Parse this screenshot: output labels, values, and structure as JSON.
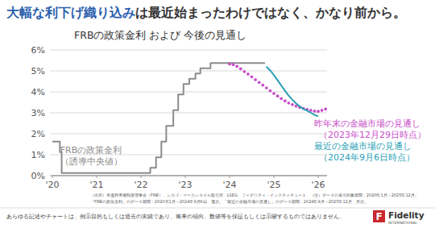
{
  "headline": {
    "emphasis": "大幅な利下げ織り込み",
    "rest": "は最近始まったわけではなく、かなり前から。"
  },
  "chart_data": {
    "type": "line",
    "title": "FRBの政策金利 および 今後の見通し",
    "xlim": [
      2020,
      2026.2
    ],
    "xticks": [
      {
        "value": 2020,
        "label": "'20"
      },
      {
        "value": 2021,
        "label": "'21"
      },
      {
        "value": 2022,
        "label": "'22"
      },
      {
        "value": 2023,
        "label": "'23"
      },
      {
        "value": 2024,
        "label": "'24"
      },
      {
        "value": 2025,
        "label": "'25"
      },
      {
        "value": 2026,
        "label": "'26"
      }
    ],
    "ylim": [
      0,
      6
    ],
    "yticks": [
      {
        "value": 0,
        "label": "0%"
      },
      {
        "value": 1,
        "label": "1%"
      },
      {
        "value": 2,
        "label": "2%"
      },
      {
        "value": 3,
        "label": "3%"
      },
      {
        "value": 4,
        "label": "4%"
      },
      {
        "value": 5,
        "label": "5%"
      },
      {
        "value": 6,
        "label": "6%"
      }
    ],
    "grid": true,
    "series": [
      {
        "name": "FRBの政策金利",
        "color": "#8c8c8c",
        "line_style": "solid",
        "marker": "none",
        "x": [
          2020.0,
          2020.17,
          2020.17,
          2020.21,
          2020.21,
          2022.21,
          2022.21,
          2022.34,
          2022.34,
          2022.46,
          2022.46,
          2022.57,
          2022.57,
          2022.73,
          2022.73,
          2022.84,
          2022.84,
          2022.96,
          2022.96,
          2023.09,
          2023.09,
          2023.23,
          2023.23,
          2023.34,
          2023.34,
          2023.57,
          2023.57,
          2024.8
        ],
        "values": [
          1.625,
          1.625,
          1.125,
          1.125,
          0.125,
          0.125,
          0.375,
          0.375,
          0.875,
          0.875,
          1.625,
          1.625,
          2.375,
          2.375,
          3.125,
          3.125,
          3.875,
          3.875,
          4.375,
          4.375,
          4.625,
          4.625,
          4.875,
          4.875,
          5.125,
          5.125,
          5.375,
          5.375
        ]
      },
      {
        "name": "昨年末の金融市場の見通し",
        "color": "#c94fc9",
        "line_style": "none",
        "marker": "circle",
        "x": [
          2024.0,
          2024.083,
          2024.167,
          2024.25,
          2024.333,
          2024.417,
          2024.5,
          2024.583,
          2024.667,
          2024.75,
          2024.833,
          2024.917,
          2025.0,
          2025.083,
          2025.167,
          2025.25,
          2025.333,
          2025.417,
          2025.5,
          2025.583,
          2025.667,
          2025.75,
          2025.833,
          2025.917,
          2026.0,
          2026.083,
          2026.167
        ],
        "values": [
          5.33,
          5.3,
          5.22,
          5.1,
          4.97,
          4.85,
          4.72,
          4.58,
          4.45,
          4.32,
          4.19,
          4.05,
          3.92,
          3.8,
          3.68,
          3.57,
          3.47,
          3.39,
          3.32,
          3.26,
          3.21,
          3.16,
          3.12,
          3.08,
          3.07,
          3.12,
          3.18
        ]
      },
      {
        "name": "最近の金融市場の見通し",
        "color": "#2a9fb5",
        "line_style": "solid",
        "marker": "none",
        "x": [
          2024.83,
          2024.917,
          2025.0,
          2025.083,
          2025.167,
          2025.25,
          2025.333,
          2025.417,
          2025.5,
          2025.583,
          2025.667,
          2025.75,
          2025.833,
          2025.917,
          2026.0
        ],
        "values": [
          5.2,
          5.02,
          4.8,
          4.55,
          4.3,
          4.05,
          3.82,
          3.62,
          3.45,
          3.3,
          3.18,
          3.1,
          3.0,
          2.9,
          2.83
        ]
      }
    ],
    "annotations": [
      "（誘導中央値）",
      "（2023年12月29日時点）",
      "（2024年9月6日時点）"
    ]
  },
  "source_notes": [
    "（出所）米連邦準備制度理事会（FRB）、シカゴ・マーカンタイル取引所、LSEG、フィデリティ・インスティテュート、（注）データの表示対象期間：2020年1月～2025年12月。",
    "「FRBの政策金利」のデータ期間：2020年1月～2024年9月6日、週次。「最近の金融市場の見通し」のデータ期間：2024年9月～2025年12月、月次。"
  ],
  "disclaimer": "あらゆる記述やチャートは、例示目的もしくは過去の実績であり、将来の傾向、数値等を保証もしくは示唆するものではありません。",
  "logo": {
    "mark": "F",
    "name": "Fidelity",
    "sub": "INTERNATIONAL"
  }
}
